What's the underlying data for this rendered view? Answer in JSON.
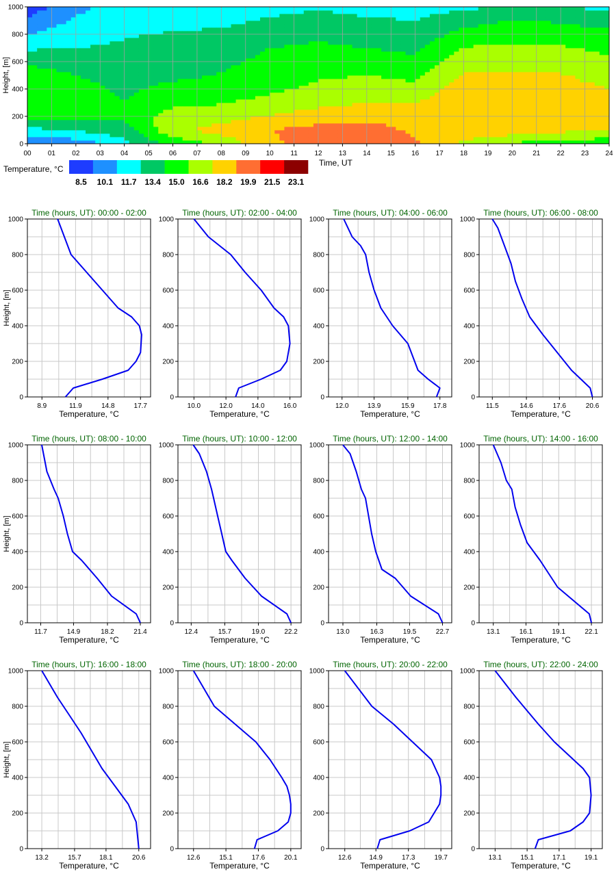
{
  "heatmap": {
    "ylabel": "Height, [m]",
    "xlabel": "Time, UT",
    "xticks": [
      "00",
      "01",
      "02",
      "03",
      "04",
      "05",
      "06",
      "07",
      "08",
      "09",
      "10",
      "11",
      "12",
      "13",
      "14",
      "15",
      "16",
      "17",
      "18",
      "19",
      "20",
      "21",
      "22",
      "23",
      "24"
    ],
    "yticks": [
      "0",
      "200",
      "400",
      "600",
      "800",
      "1000"
    ],
    "legend_title": "Temperature, °C",
    "legend_levels": [
      "8.5",
      "10.1",
      "11.7",
      "13.4",
      "15.0",
      "16.6",
      "18.2",
      "19.9",
      "21.5",
      "23.1"
    ],
    "legend_colors": [
      "#1e3cff",
      "#1e90ff",
      "#00ffff",
      "#00c864",
      "#00ff00",
      "#aaff00",
      "#ffd200",
      "#ff6e32",
      "#ff0000",
      "#8c0000"
    ]
  },
  "panel_common": {
    "ylabel": "Height, [m]",
    "xlabel": "Temperature, °C",
    "yticks": [
      "0",
      "200",
      "400",
      "600",
      "800",
      "1000"
    ],
    "title_prefix": "Time (hours, UT):",
    "line_color": "#0000ee",
    "title_color": "#006400"
  },
  "chart_data": [
    {
      "type": "heatmap",
      "title": "",
      "xlabel": "Time, UT",
      "ylabel": "Height, [m]",
      "xlim": [
        0,
        24
      ],
      "ylim": [
        0,
        1000
      ],
      "colorbar_levels": [
        8.5,
        10.1,
        11.7,
        13.4,
        15.0,
        16.6,
        18.2,
        19.9,
        21.5,
        23.1
      ],
      "colorbar_label": "Temperature, °C",
      "heights": [
        0,
        100,
        200,
        300,
        400,
        500,
        600,
        700,
        800,
        900,
        1000
      ],
      "time_hours": [
        0,
        2,
        4,
        6,
        8,
        10,
        12,
        14,
        16,
        18,
        20,
        22,
        24
      ],
      "temperature": [
        [
          10.4,
          10.6,
          12.8,
          15.5,
          17.0,
          19.5,
          20.8,
          21.4,
          20.2,
          17.8,
          16.4,
          15.8,
          15.5
        ],
        [
          12.9,
          13.6,
          14.3,
          17.8,
          18.9,
          19.9,
          20.6,
          20.8,
          19.5,
          19.5,
          19.1,
          18.6,
          18.1
        ],
        [
          15.5,
          15.4,
          15.4,
          17.4,
          17.5,
          18.3,
          19.0,
          19.2,
          19.1,
          19.8,
          19.9,
          19.3,
          18.8
        ],
        [
          16.5,
          16.0,
          15.1,
          16.2,
          16.5,
          17.1,
          17.7,
          18.2,
          18.2,
          19.6,
          19.7,
          19.0,
          18.5
        ],
        [
          16.5,
          15.6,
          14.7,
          15.4,
          15.6,
          16.3,
          16.9,
          17.4,
          17.1,
          19.0,
          19.2,
          18.7,
          18.2
        ],
        [
          16.0,
          15.0,
          14.4,
          14.7,
          15.1,
          15.8,
          16.4,
          16.6,
          16.2,
          18.4,
          18.5,
          18.3,
          17.7
        ],
        [
          14.6,
          14.2,
          13.9,
          14.2,
          14.7,
          15.4,
          15.9,
          15.8,
          15.4,
          17.6,
          17.7,
          17.6,
          17.0
        ],
        [
          13.2,
          13.4,
          13.6,
          13.8,
          14.2,
          15.0,
          15.3,
          15.0,
          14.6,
          16.7,
          16.9,
          16.8,
          16.2
        ],
        [
          11.6,
          12.8,
          13.3,
          13.5,
          13.7,
          14.3,
          14.7,
          14.3,
          14.0,
          15.6,
          16.0,
          15.9,
          15.4
        ],
        [
          10.4,
          11.9,
          12.8,
          13.1,
          13.0,
          13.6,
          14.0,
          13.6,
          13.4,
          14.3,
          15.1,
          14.8,
          14.3
        ],
        [
          9.2,
          11.3,
          12.3,
          12.6,
          12.2,
          12.8,
          13.2,
          12.9,
          12.8,
          13.1,
          13.6,
          13.4,
          13.1
        ]
      ]
    },
    {
      "type": "line",
      "title": "Time (hours, UT): 00:00 - 02:00",
      "xlabel": "Temperature, °C",
      "ylabel": "Height, [m]",
      "xticks": [
        8.9,
        11.9,
        14.8,
        17.7
      ],
      "xlim": [
        7.6,
        18.6
      ],
      "ylim": [
        0,
        1000
      ],
      "series": [
        {
          "x": [
            11.0,
            11.7,
            14.3,
            16.6,
            17.3,
            17.7,
            17.8,
            17.6,
            16.9,
            15.7,
            14.3,
            12.9,
            11.5,
            10.3
          ],
          "y": [
            0,
            50,
            100,
            150,
            200,
            250,
            350,
            400,
            450,
            500,
            600,
            700,
            800,
            1000
          ]
        }
      ]
    },
    {
      "type": "line",
      "title": "Time (hours, UT): 02:00 - 04:00",
      "xlabel": "Temperature, °C",
      "ylabel": "Height, [m]",
      "xticks": [
        10.0,
        12.0,
        14.0,
        16.0
      ],
      "xlim": [
        9.0,
        16.7
      ],
      "ylim": [
        0,
        1000
      ],
      "series": [
        {
          "x": [
            12.6,
            12.8,
            14.2,
            15.4,
            15.8,
            16.0,
            15.9,
            15.6,
            15.0,
            14.2,
            13.2,
            12.3,
            10.9,
            10.0
          ],
          "y": [
            0,
            50,
            100,
            150,
            200,
            300,
            400,
            450,
            500,
            600,
            700,
            800,
            900,
            1000
          ]
        }
      ]
    },
    {
      "type": "line",
      "title": "Time (hours, UT): 04:00 - 06:00",
      "xlabel": "Temperature, °C",
      "ylabel": "Height, [m]",
      "xticks": [
        12.0,
        13.9,
        15.9,
        17.8
      ],
      "xlim": [
        11.2,
        18.5
      ],
      "ylim": [
        0,
        1000
      ],
      "series": [
        {
          "x": [
            17.6,
            17.8,
            17.1,
            16.5,
            15.9,
            15.0,
            14.3,
            13.9,
            13.6,
            13.4,
            13.1,
            12.6,
            12.1
          ],
          "y": [
            0,
            50,
            100,
            150,
            300,
            400,
            500,
            600,
            700,
            800,
            850,
            900,
            1000
          ]
        }
      ]
    },
    {
      "type": "line",
      "title": "Time (hours, UT): 06:00 - 08:00",
      "xlabel": "Temperature, °C",
      "ylabel": "Height, [m]",
      "xticks": [
        11.5,
        14.6,
        17.6,
        20.6
      ],
      "xlim": [
        10.3,
        21.5
      ],
      "ylim": [
        0,
        1000
      ],
      "series": [
        {
          "x": [
            20.6,
            20.4,
            18.7,
            17.4,
            16.1,
            14.9,
            14.2,
            13.6,
            13.2,
            12.6,
            12.0,
            11.5
          ],
          "y": [
            0,
            50,
            150,
            250,
            350,
            450,
            550,
            650,
            750,
            850,
            950,
            1000
          ]
        }
      ]
    },
    {
      "type": "line",
      "title": "Time (hours, UT): 08:00 - 10:00",
      "xlabel": "Temperature, °C",
      "ylabel": "Height, [m]",
      "xticks": [
        11.7,
        14.9,
        18.2,
        21.4
      ],
      "xlim": [
        10.4,
        22.4
      ],
      "ylim": [
        0,
        1000
      ],
      "series": [
        {
          "x": [
            21.4,
            21.0,
            18.6,
            17.2,
            15.7,
            14.8,
            14.3,
            13.9,
            13.4,
            13.0,
            12.3,
            11.8
          ],
          "y": [
            0,
            50,
            150,
            250,
            350,
            400,
            500,
            600,
            700,
            750,
            850,
            1000
          ]
        }
      ]
    },
    {
      "type": "line",
      "title": "Time (hours, UT): 10:00 - 12:00",
      "xlabel": "Temperature, °C",
      "ylabel": "Height, [m]",
      "xticks": [
        12.4,
        15.7,
        19.0,
        22.2
      ],
      "xlim": [
        11.1,
        23.2
      ],
      "ylim": [
        0,
        1000
      ],
      "series": [
        {
          "x": [
            22.2,
            21.8,
            19.3,
            17.7,
            16.4,
            15.8,
            15.4,
            15.0,
            14.6,
            14.4,
            13.9,
            13.2,
            12.6
          ],
          "y": [
            0,
            50,
            150,
            250,
            350,
            400,
            500,
            600,
            700,
            750,
            850,
            950,
            1000
          ]
        }
      ]
    },
    {
      "type": "line",
      "title": "Time (hours, UT): 12:00 - 14:00",
      "xlabel": "Temperature, °C",
      "ylabel": "Height, [m]",
      "xticks": [
        13.0,
        16.3,
        19.5,
        22.7
      ],
      "xlim": [
        11.6,
        23.6
      ],
      "ylim": [
        0,
        1000
      ],
      "series": [
        {
          "x": [
            22.7,
            22.3,
            19.6,
            18.1,
            16.8,
            16.2,
            15.8,
            15.5,
            15.2,
            14.8,
            14.3,
            13.7,
            13.0
          ],
          "y": [
            0,
            50,
            150,
            250,
            300,
            400,
            500,
            600,
            700,
            750,
            850,
            950,
            1000
          ]
        }
      ]
    },
    {
      "type": "line",
      "title": "Time (hours, UT): 14:00 - 16:00",
      "xlabel": "Temperature, °C",
      "ylabel": "Height, [m]",
      "xticks": [
        13.1,
        16.1,
        19.1,
        22.1
      ],
      "xlim": [
        11.8,
        23.1
      ],
      "ylim": [
        0,
        1000
      ],
      "series": [
        {
          "x": [
            22.1,
            21.9,
            19.0,
            17.4,
            16.2,
            15.6,
            15.1,
            14.8,
            14.3,
            13.8,
            13.1
          ],
          "y": [
            0,
            50,
            200,
            350,
            450,
            550,
            650,
            750,
            800,
            900,
            1000
          ]
        }
      ]
    },
    {
      "type": "line",
      "title": "Time (hours, UT): 16:00 - 18:00",
      "xlabel": "Temperature, °C",
      "ylabel": "Height, [m]",
      "xticks": [
        13.2,
        15.7,
        18.1,
        20.6
      ],
      "xlim": [
        12.1,
        21.5
      ],
      "ylim": [
        0,
        1000
      ],
      "series": [
        {
          "x": [
            20.6,
            20.4,
            19.8,
            18.8,
            17.8,
            17.0,
            16.2,
            15.3,
            14.4,
            13.2
          ],
          "y": [
            0,
            150,
            250,
            350,
            450,
            550,
            650,
            750,
            850,
            1000
          ]
        }
      ]
    },
    {
      "type": "line",
      "title": "Time (hours, UT): 18:00 - 20:00",
      "xlabel": "Temperature, °C",
      "ylabel": "Height, [m]",
      "xticks": [
        12.6,
        15.1,
        17.6,
        20.1
      ],
      "xlim": [
        11.4,
        20.9
      ],
      "ylim": [
        0,
        1000
      ],
      "series": [
        {
          "x": [
            17.3,
            17.5,
            19.1,
            19.9,
            20.1,
            20.1,
            20.0,
            19.8,
            19.4,
            18.5,
            17.4,
            15.8,
            14.2,
            12.6
          ],
          "y": [
            0,
            50,
            100,
            150,
            200,
            250,
            300,
            350,
            400,
            500,
            600,
            700,
            800,
            1000
          ]
        }
      ]
    },
    {
      "type": "line",
      "title": "Time (hours, UT): 20:00 - 22:00",
      "xlabel": "Temperature, °C",
      "ylabel": "Height, [m]",
      "xticks": [
        12.6,
        14.9,
        17.3,
        19.7
      ],
      "xlim": [
        11.4,
        20.5
      ],
      "ylim": [
        0,
        1000
      ],
      "series": [
        {
          "x": [
            15.0,
            15.2,
            17.4,
            18.8,
            19.6,
            19.7,
            19.7,
            19.6,
            19.0,
            17.6,
            16.2,
            14.6,
            12.6
          ],
          "y": [
            0,
            50,
            100,
            150,
            250,
            300,
            350,
            400,
            500,
            600,
            700,
            800,
            1000
          ]
        }
      ]
    },
    {
      "type": "line",
      "title": "Time (hours, UT): 22:00 - 24:00",
      "xlabel": "Temperature, °C",
      "ylabel": "Height, [m]",
      "xticks": [
        13.1,
        15.1,
        17.1,
        19.1
      ],
      "xlim": [
        12.1,
        19.8
      ],
      "ylim": [
        0,
        1000
      ],
      "series": [
        {
          "x": [
            15.6,
            15.8,
            17.8,
            18.6,
            19.0,
            19.1,
            19.0,
            18.6,
            18.0,
            16.8,
            15.8,
            14.4,
            13.1
          ],
          "y": [
            0,
            50,
            100,
            150,
            200,
            300,
            400,
            450,
            500,
            600,
            700,
            850,
            1000
          ]
        }
      ]
    }
  ]
}
